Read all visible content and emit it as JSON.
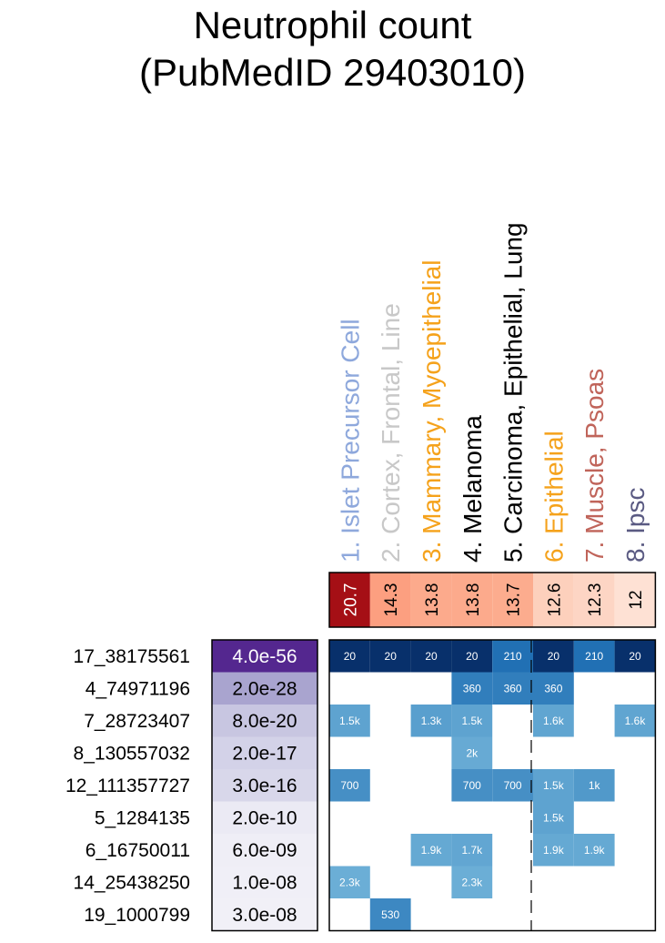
{
  "title_line1": "Neutrophil count",
  "title_line2": "(PubMedID 29403010)",
  "chart_data": {
    "type": "heatmap",
    "title": "Neutrophil count (PubMedID 29403010)",
    "columns": [
      {
        "label": "1. Islet Precursor Cell",
        "color": "#8ea8dc",
        "score": 20.7,
        "score_label": "20.7",
        "score_color": "#a50f15"
      },
      {
        "label": "2. Cortex, Frontal, Line",
        "color": "#c8c8c8",
        "score": 14.3,
        "score_label": "14.3",
        "score_color": "#fc9f80"
      },
      {
        "label": "3. Mammary, Myoepithelial",
        "color": "#f5a21b",
        "score": 13.8,
        "score_label": "13.8",
        "score_color": "#fcaa8c"
      },
      {
        "label": "4. Melanoma",
        "color": "#000000",
        "score": 13.8,
        "score_label": "13.8",
        "score_color": "#fcaa8c"
      },
      {
        "label": "5. Carcinoma, Epithelial, Lung",
        "color": "#000000",
        "score": 13.7,
        "score_label": "13.7",
        "score_color": "#fcac8e"
      },
      {
        "label": "6. Epithelial",
        "color": "#f5a21b",
        "score": 12.6,
        "score_label": "12.6",
        "score_color": "#fdd0bc"
      },
      {
        "label": "7. Muscle, Psoas",
        "color": "#c0645a",
        "score": 12.3,
        "score_label": "12.3",
        "score_color": "#fdd5c4"
      },
      {
        "label": "8. Ipsc",
        "color": "#5a5a82",
        "score": 12,
        "score_label": "12",
        "score_color": "#fee1d4"
      }
    ],
    "rows": [
      {
        "variant": "17_38175561",
        "pvalue": "4.0e-56",
        "pcolor": "#54278f",
        "cells": [
          {
            "col": 0,
            "value": 20,
            "label": "20"
          },
          {
            "col": 1,
            "value": 20,
            "label": "20"
          },
          {
            "col": 2,
            "value": 20,
            "label": "20"
          },
          {
            "col": 3,
            "value": 20,
            "label": "20"
          },
          {
            "col": 4,
            "value": 210,
            "label": "210"
          },
          {
            "col": 5,
            "value": 20,
            "label": "20"
          },
          {
            "col": 6,
            "value": 210,
            "label": "210"
          },
          {
            "col": 7,
            "value": 20,
            "label": "20"
          }
        ]
      },
      {
        "variant": "4_74971196",
        "pvalue": "2.0e-28",
        "pcolor": "#a9a4cf",
        "cells": [
          {
            "col": 3,
            "value": 360,
            "label": "360"
          },
          {
            "col": 4,
            "value": 360,
            "label": "360"
          },
          {
            "col": 5,
            "value": 360,
            "label": "360"
          }
        ]
      },
      {
        "variant": "7_28723407",
        "pvalue": "8.0e-20",
        "pcolor": "#c8c6e1",
        "cells": [
          {
            "col": 0,
            "value": 1500,
            "label": "1.5k"
          },
          {
            "col": 2,
            "value": 1300,
            "label": "1.3k"
          },
          {
            "col": 3,
            "value": 1500,
            "label": "1.5k"
          },
          {
            "col": 5,
            "value": 1600,
            "label": "1.6k"
          },
          {
            "col": 7,
            "value": 1600,
            "label": "1.6k"
          }
        ]
      },
      {
        "variant": "8_130557032",
        "pvalue": "2.0e-17",
        "pcolor": "#d3d2e8",
        "cells": [
          {
            "col": 3,
            "value": 2000,
            "label": "2k"
          }
        ]
      },
      {
        "variant": "12_111357727",
        "pvalue": "3.0e-16",
        "pcolor": "#d8d7ea",
        "cells": [
          {
            "col": 0,
            "value": 700,
            "label": "700"
          },
          {
            "col": 3,
            "value": 700,
            "label": "700"
          },
          {
            "col": 4,
            "value": 700,
            "label": "700"
          },
          {
            "col": 5,
            "value": 1500,
            "label": "1.5k"
          },
          {
            "col": 6,
            "value": 1000,
            "label": "1k"
          }
        ]
      },
      {
        "variant": "5_1284135",
        "pvalue": "2.0e-10",
        "pcolor": "#ebeaf4",
        "cells": [
          {
            "col": 5,
            "value": 1500,
            "label": "1.5k"
          }
        ]
      },
      {
        "variant": "6_16750011",
        "pvalue": "6.0e-09",
        "pcolor": "#efeef6",
        "cells": [
          {
            "col": 2,
            "value": 1900,
            "label": "1.9k"
          },
          {
            "col": 3,
            "value": 1700,
            "label": "1.7k"
          },
          {
            "col": 5,
            "value": 1900,
            "label": "1.9k"
          },
          {
            "col": 6,
            "value": 1900,
            "label": "1.9k"
          }
        ]
      },
      {
        "variant": "14_25438250",
        "pvalue": "1.0e-08",
        "pcolor": "#f0eff7",
        "cells": [
          {
            "col": 0,
            "value": 2300,
            "label": "2.3k"
          },
          {
            "col": 3,
            "value": 2300,
            "label": "2.3k"
          }
        ]
      },
      {
        "variant": "19_1000799",
        "pvalue": "3.0e-08",
        "pcolor": "#f1f0f7",
        "cells": [
          {
            "col": 1,
            "value": 530,
            "label": "530"
          }
        ]
      }
    ],
    "cell_color_scale": {
      "low": "#08306b",
      "mid": "#2171b5",
      "high": "#6baed6"
    },
    "divider_after_column": 5
  }
}
